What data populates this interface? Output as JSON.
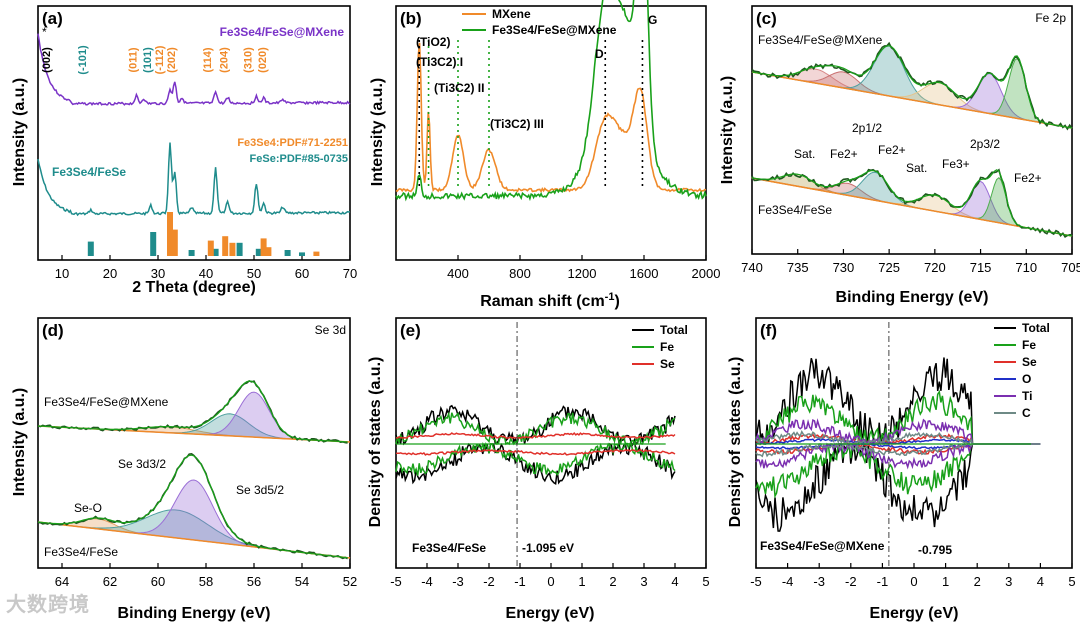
{
  "watermark": "大数跨境",
  "colors": {
    "black": "#000000",
    "purple": "#7a33c7",
    "teal": "#1f8c8c",
    "orange": "#f08a2a",
    "green": "#19a11a",
    "red": "#e0302a",
    "blue": "#2030c8",
    "violet": "#7b2fb0",
    "gray": "#6e8a86",
    "olive": "#7a6a3a"
  },
  "chart_data": [
    {
      "panel": "(a)",
      "type": "line",
      "xlabel": "2 Theta (degree)",
      "ylabel": "Intensity (a.u.)",
      "xlim": [
        5,
        70
      ],
      "xticks": [
        "10",
        "20",
        "30",
        "40",
        "50",
        "60",
        "70"
      ],
      "series": [
        {
          "name": "Fe3Se4/FeSe@MXene",
          "color": "#7a33c7"
        },
        {
          "name": "Fe3Se4/FeSe",
          "color": "#1f8c8c"
        }
      ],
      "labels": {
        "top": "Fe3Se4/FeSe@MXene",
        "bottom": "Fe3Se4/FeSe",
        "pdf1": "Fe3Se4:PDF#71-2251",
        "pdf2": "FeSe:PDF#85-0735",
        "star": "*",
        "peaks": [
          "(002)",
          "(-101)",
          "(011)",
          "(101)",
          "(-112)",
          "(202)",
          "(114)",
          "(204)",
          "(310)",
          "(020)"
        ]
      },
      "ref_bars_teal": [
        [
          16,
          0.6
        ],
        [
          29,
          1.0
        ],
        [
          33,
          0.4
        ],
        [
          37,
          0.25
        ],
        [
          42,
          0.3
        ],
        [
          47,
          0.55
        ],
        [
          51,
          0.3
        ],
        [
          57,
          0.25
        ],
        [
          60,
          0.15
        ]
      ],
      "ref_bars_orange": [
        [
          32.5,
          1.0
        ],
        [
          33.5,
          0.6
        ],
        [
          41,
          0.35
        ],
        [
          44,
          0.45
        ],
        [
          45.5,
          0.3
        ],
        [
          52,
          0.4
        ],
        [
          53,
          0.2
        ],
        [
          63,
          0.1
        ]
      ]
    },
    {
      "panel": "(b)",
      "type": "line",
      "xlabel": "Raman shift (cm-1)",
      "ylabel": "Intensity (a.u.)",
      "xlim": [
        0,
        2000
      ],
      "xticks": [
        "400",
        "800",
        "1200",
        "1600",
        "2000"
      ],
      "series": [
        {
          "name": "MXene",
          "color": "#f08a2a"
        },
        {
          "name": "Fe3Se4/FeSe@MXene",
          "color": "#19a11a"
        }
      ],
      "labels": {
        "tio2": "(TiO2)",
        "tic1": "(Ti3C2) I",
        "tic2": "(Ti3C2) II",
        "tic3": "(Ti3C2) III",
        "d": "D",
        "g": "G"
      }
    },
    {
      "panel": "(c)",
      "type": "line",
      "title": "Fe 2p",
      "xlabel": "Binding Energy (eV)",
      "ylabel": "Intensity (a.u.)",
      "xlim": [
        740,
        705
      ],
      "xticks": [
        "740",
        "735",
        "730",
        "725",
        "720",
        "715",
        "710",
        "705"
      ],
      "labels": {
        "top": "Fe3Se4/FeSe@MXene",
        "bottom": "Fe3Se4/FeSe",
        "p12": "2p1/2",
        "p32": "2p3/2",
        "sat1": "Sat.",
        "sat2": "Sat.",
        "fe2a": "Fe2+",
        "fe2b": "Fe2+",
        "fe3": "Fe3+",
        "fe2c": "Fe2+"
      }
    },
    {
      "panel": "(d)",
      "type": "line",
      "title": "Se 3d",
      "xlabel": "Binding Energy (eV)",
      "ylabel": "Intensity (a.u.)",
      "xlim": [
        65,
        52
      ],
      "xticks": [
        "64",
        "62",
        "60",
        "58",
        "56",
        "54",
        "52"
      ],
      "labels": {
        "top": "Fe3Se4/FeSe@MXene",
        "bottom": "Fe3Se4/FeSe",
        "se32": "Se 3d3/2",
        "se52": "Se 3d5/2",
        "seo": "Se-O"
      }
    },
    {
      "panel": "(e)",
      "type": "line",
      "xlabel": "Energy (eV)",
      "ylabel": "Density of states (a.u.)",
      "xlim": [
        -5,
        5
      ],
      "xticks": [
        "-5",
        "-4",
        "-3",
        "-2",
        "-1",
        "0",
        "1",
        "2",
        "3",
        "4",
        "5"
      ],
      "series": [
        {
          "name": "Total",
          "color": "#000000"
        },
        {
          "name": "Fe",
          "color": "#19a11a"
        },
        {
          "name": "Se",
          "color": "#e0302a"
        }
      ],
      "labels": {
        "material": "Fe3Se4/FeSe",
        "dband": "-1.095 eV"
      }
    },
    {
      "panel": "(f)",
      "type": "line",
      "xlabel": "Energy (eV)",
      "ylabel": "Density of states (a.u.)",
      "xlim": [
        -5,
        5
      ],
      "xticks": [
        "-5",
        "-4",
        "-3",
        "-2",
        "-1",
        "0",
        "1",
        "2",
        "3",
        "4",
        "5"
      ],
      "series": [
        {
          "name": "Total",
          "color": "#000000"
        },
        {
          "name": "Fe",
          "color": "#19a11a"
        },
        {
          "name": "Se",
          "color": "#e0302a"
        },
        {
          "name": "O",
          "color": "#2030c8"
        },
        {
          "name": "Ti",
          "color": "#7b2fb0"
        },
        {
          "name": "C",
          "color": "#6e8a86"
        }
      ],
      "labels": {
        "material": "Fe3Se4/FeSe@MXene",
        "dband": "-0.795"
      }
    }
  ]
}
